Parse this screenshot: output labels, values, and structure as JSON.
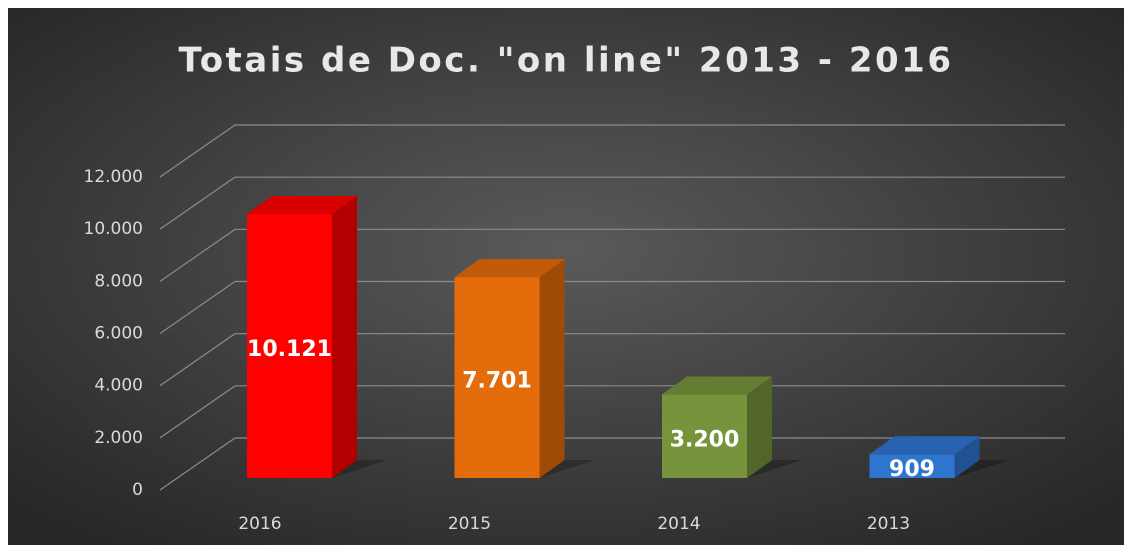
{
  "chart_data": {
    "type": "bar3d",
    "title": "Totais de Doc. \"on line\" 2013 - 2016",
    "categories": [
      "2016",
      "2015",
      "2014",
      "2013"
    ],
    "values": [
      10121,
      7701,
      3200,
      909
    ],
    "value_labels": [
      "10.121",
      "7.701",
      "3.200",
      "909"
    ],
    "colors": [
      "#ff0000",
      "#e46c0a",
      "#77933c",
      "#2e75d0"
    ],
    "ylim": [
      0,
      12000
    ],
    "yticks": [
      0,
      {
        "value": 2000,
        "label": "2.000"
      },
      {
        "value": 4000,
        "label": "4.000"
      },
      {
        "value": 6000,
        "label": "6.000"
      },
      {
        "value": 8000,
        "label": "8.000"
      },
      {
        "value": 10000,
        "label": "10.000"
      },
      {
        "value": 12000,
        "label": "12.000"
      }
    ],
    "grid": true
  }
}
